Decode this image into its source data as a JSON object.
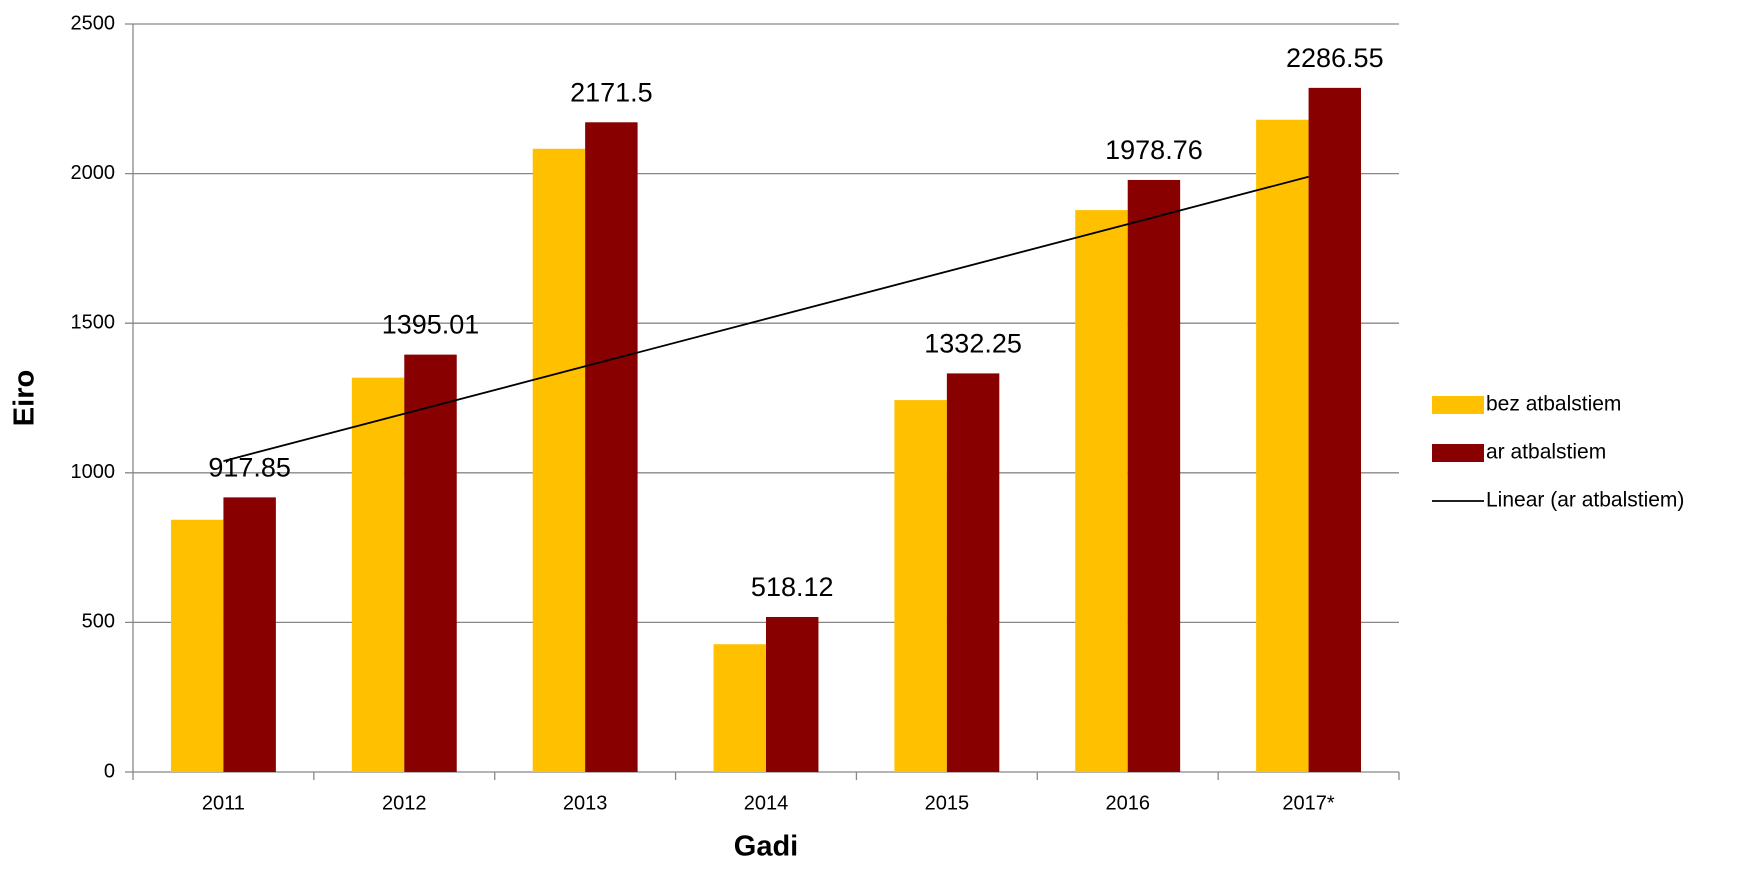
{
  "chart_data": {
    "type": "bar",
    "x_label": "Gadi",
    "y_label": "Eiro",
    "categories": [
      "2011",
      "2012",
      "2013",
      "2014",
      "2015",
      "2016",
      "2017*"
    ],
    "series": [
      {
        "name": "bez atbalstiem",
        "color": "#ffc000",
        "values": [
          843,
          1318,
          2083,
          427,
          1243,
          1878,
          2180
        ]
      },
      {
        "name": "ar atbalstiem",
        "color": "#880000",
        "values": [
          917.85,
          1395.01,
          2171.5,
          518.12,
          1332.25,
          1978.76,
          2286.55
        ],
        "data_labels": true,
        "trendline": "Linear (ar atbalstiem)",
        "trendline_color": "#000000"
      }
    ],
    "ylim": [
      0,
      2500
    ],
    "yticks": [
      0,
      500,
      1000,
      1500,
      2000,
      2500
    ],
    "grid": true,
    "legend": "right"
  }
}
